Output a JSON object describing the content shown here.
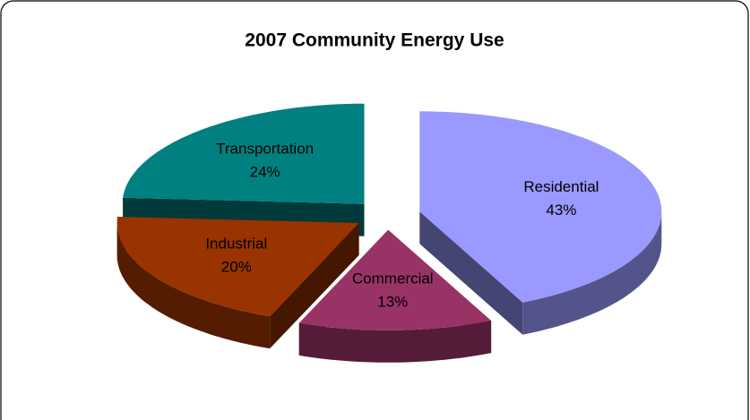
{
  "chart_data": {
    "type": "pie",
    "title": "2007 Community Energy Use",
    "categories": [
      "Residential",
      "Commercial",
      "Industrial",
      "Transportation"
    ],
    "values": [
      43,
      13,
      20,
      24
    ],
    "value_labels": [
      "43%",
      "13%",
      "20%",
      "24%"
    ],
    "colors": [
      "#9999ff",
      "#993366",
      "#993300",
      "#008080"
    ]
  }
}
